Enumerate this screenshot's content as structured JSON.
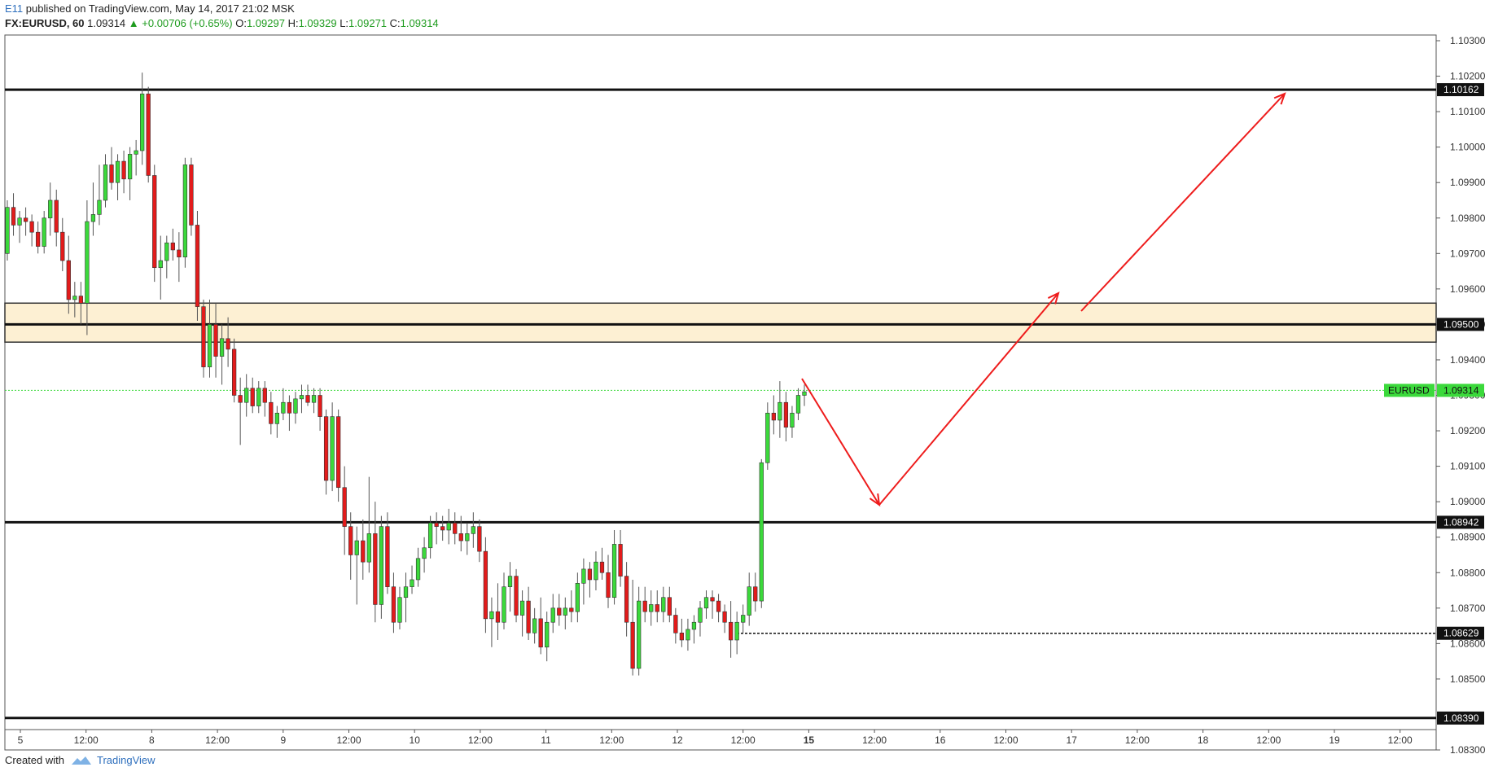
{
  "header": {
    "user": "E11",
    "published": " published on TradingView.com, May 14, 2017 21:02 MSK"
  },
  "symbol_bar": {
    "symbol": "FX:EURUSD, 60",
    "last": "1.09314",
    "change": "▲ +0.00706 (+0.65%)",
    "o_label": "O:",
    "o": "1.09297",
    "h_label": "H:",
    "h": "1.09329",
    "l_label": "L:",
    "l": "1.09271",
    "c_label": "C:",
    "c": "1.09314"
  },
  "footer": {
    "created": "Created with",
    "brand": "TradingView"
  },
  "chart_data": {
    "type": "candlestick",
    "symbol": "EURUSD",
    "ylim": [
      1.0827,
      1.1031
    ],
    "y_ticks": [
      "1.10300",
      "1.10200",
      "1.10100",
      "1.10000",
      "1.09900",
      "1.09800",
      "1.09700",
      "1.09600",
      "1.09500",
      "1.09400",
      "1.09300",
      "1.09200",
      "1.09100",
      "1.09000",
      "1.08900",
      "1.08800",
      "1.08700",
      "1.08600",
      "1.08500",
      "1.08300"
    ],
    "x_ticks": [
      "5",
      "12:00",
      "8",
      "12:00",
      "9",
      "12:00",
      "10",
      "12:00",
      "11",
      "12:00",
      "12",
      "12:00",
      "15",
      "12:00",
      "16",
      "12:00",
      "17",
      "12:00",
      "18",
      "12:00",
      "19",
      "12:00"
    ],
    "horizontal_levels": [
      {
        "label": "1.10162",
        "value": 1.10162,
        "style": "solid"
      },
      {
        "label": "1.09500",
        "value": 1.095,
        "style": "solid"
      },
      {
        "label": "1.08942",
        "value": 1.08942,
        "style": "solid"
      },
      {
        "label": "1.08629",
        "value": 1.08629,
        "style": "dotted"
      },
      {
        "label": "1.08390",
        "value": 1.0839,
        "style": "solid"
      }
    ],
    "zone": {
      "low": 1.0945,
      "high": 1.0956
    },
    "current_price": {
      "name": "EURUSD",
      "label": "1.09314",
      "value": 1.09314
    },
    "candle_colors": {
      "up": "#3bd93b",
      "down": "#e31b1b"
    },
    "candles": [
      [
        1.097,
        1.0985,
        1.0968,
        1.0983
      ],
      [
        1.0983,
        1.0987,
        1.0975,
        1.0978
      ],
      [
        1.0978,
        1.0982,
        1.0973,
        1.098
      ],
      [
        1.098,
        1.0983,
        1.0975,
        1.0979
      ],
      [
        1.0979,
        1.0981,
        1.0972,
        1.0976
      ],
      [
        1.0976,
        1.0979,
        1.097,
        1.0972
      ],
      [
        1.0972,
        1.0982,
        1.097,
        1.098
      ],
      [
        1.098,
        1.099,
        1.0975,
        1.0985
      ],
      [
        1.0985,
        1.0988,
        1.0972,
        1.0976
      ],
      [
        1.0976,
        1.098,
        1.0965,
        1.0968
      ],
      [
        1.0968,
        1.0975,
        1.0953,
        1.0957
      ],
      [
        1.0957,
        1.0962,
        1.0952,
        1.0958
      ],
      [
        1.0958,
        1.0962,
        1.095,
        1.0956
      ],
      [
        1.0956,
        1.0985,
        1.0947,
        1.0979
      ],
      [
        1.0979,
        1.099,
        1.0975,
        1.0981
      ],
      [
        1.0981,
        1.0995,
        1.0978,
        1.0985
      ],
      [
        1.0985,
        1.0998,
        1.0983,
        1.0995
      ],
      [
        1.0995,
        1.1,
        1.0988,
        1.099
      ],
      [
        1.099,
        1.0998,
        1.0985,
        1.0996
      ],
      [
        1.0996,
        1.0999,
        1.0987,
        1.0991
      ],
      [
        1.0991,
        1.1,
        1.0985,
        1.0998
      ],
      [
        1.0998,
        1.1002,
        1.0992,
        1.0999
      ],
      [
        1.0999,
        1.1021,
        1.0995,
        1.1015
      ],
      [
        1.1015,
        1.1017,
        1.099,
        1.0992
      ],
      [
        1.0992,
        1.0995,
        1.0962,
        1.0966
      ],
      [
        1.0966,
        1.0975,
        1.0957,
        1.0968
      ],
      [
        1.0968,
        1.0975,
        1.0963,
        1.0973
      ],
      [
        1.0973,
        1.0977,
        1.0968,
        1.0971
      ],
      [
        1.0971,
        1.0976,
        1.0962,
        1.0969
      ],
      [
        1.0969,
        1.0997,
        1.0966,
        1.0995
      ],
      [
        1.0995,
        1.0997,
        1.0975,
        1.0978
      ],
      [
        1.0978,
        1.0982,
        1.0951,
        1.0955
      ],
      [
        1.0955,
        1.0957,
        1.0935,
        1.0938
      ],
      [
        1.0938,
        1.0957,
        1.0935,
        1.095
      ],
      [
        1.095,
        1.0956,
        1.0935,
        1.0941
      ],
      [
        1.0941,
        1.095,
        1.0933,
        1.0946
      ],
      [
        1.0946,
        1.0952,
        1.0938,
        1.0943
      ],
      [
        1.0943,
        1.0946,
        1.0928,
        1.093
      ],
      [
        1.093,
        1.0935,
        1.0916,
        1.0928
      ],
      [
        1.0928,
        1.0936,
        1.0924,
        1.0932
      ],
      [
        1.0932,
        1.0935,
        1.0925,
        1.0927
      ],
      [
        1.0927,
        1.0934,
        1.0925,
        1.0932
      ],
      [
        1.0932,
        1.0934,
        1.0924,
        1.0928
      ],
      [
        1.0928,
        1.0931,
        1.0919,
        1.0922
      ],
      [
        1.0922,
        1.0927,
        1.0918,
        1.0925
      ],
      [
        1.0925,
        1.0932,
        1.0923,
        1.0928
      ],
      [
        1.0928,
        1.093,
        1.092,
        1.0925
      ],
      [
        1.0925,
        1.0931,
        1.0922,
        1.0929
      ],
      [
        1.0929,
        1.0933,
        1.0925,
        1.093
      ],
      [
        1.093,
        1.0933,
        1.0927,
        1.0928
      ],
      [
        1.0928,
        1.0932,
        1.0925,
        1.093
      ],
      [
        1.093,
        1.0932,
        1.092,
        1.0924
      ],
      [
        1.0924,
        1.0926,
        1.0902,
        1.0906
      ],
      [
        1.0906,
        1.0928,
        1.0903,
        1.0924
      ],
      [
        1.0924,
        1.0926,
        1.09,
        1.0904
      ],
      [
        1.0904,
        1.091,
        1.0885,
        1.0893
      ],
      [
        1.0893,
        1.0897,
        1.0878,
        1.0885
      ],
      [
        1.0885,
        1.0893,
        1.0871,
        1.0889
      ],
      [
        1.0889,
        1.0895,
        1.0878,
        1.0883
      ],
      [
        1.0883,
        1.0907,
        1.088,
        1.0891
      ],
      [
        1.0891,
        1.09,
        1.0866,
        1.0871
      ],
      [
        1.0871,
        1.0896,
        1.0867,
        1.0893
      ],
      [
        1.0893,
        1.0897,
        1.0874,
        1.0876
      ],
      [
        1.0876,
        1.088,
        1.0863,
        1.0866
      ],
      [
        1.0866,
        1.0876,
        1.0864,
        1.0873
      ],
      [
        1.0873,
        1.088,
        1.0866,
        1.0876
      ],
      [
        1.0876,
        1.0882,
        1.0874,
        1.0878
      ],
      [
        1.0878,
        1.0887,
        1.0876,
        1.0884
      ],
      [
        1.0884,
        1.089,
        1.088,
        1.0887
      ],
      [
        1.0887,
        1.0896,
        1.0884,
        1.0894
      ],
      [
        1.0894,
        1.0897,
        1.0888,
        1.0893
      ],
      [
        1.0893,
        1.0896,
        1.0889,
        1.0892
      ],
      [
        1.0892,
        1.0898,
        1.0888,
        1.0894
      ],
      [
        1.0894,
        1.0897,
        1.0888,
        1.0891
      ],
      [
        1.0891,
        1.0896,
        1.0886,
        1.0889
      ],
      [
        1.0889,
        1.0894,
        1.0885,
        1.0891
      ],
      [
        1.0891,
        1.0897,
        1.0887,
        1.0893
      ],
      [
        1.0893,
        1.0895,
        1.0883,
        1.0886
      ],
      [
        1.0886,
        1.089,
        1.0863,
        1.0867
      ],
      [
        1.0867,
        1.0873,
        1.0859,
        1.0869
      ],
      [
        1.0869,
        1.0877,
        1.0861,
        1.0866
      ],
      [
        1.0866,
        1.088,
        1.0864,
        1.0876
      ],
      [
        1.0876,
        1.0883,
        1.0869,
        1.0879
      ],
      [
        1.0879,
        1.0881,
        1.0866,
        1.0868
      ],
      [
        1.0868,
        1.0875,
        1.0862,
        1.0872
      ],
      [
        1.0872,
        1.0876,
        1.0861,
        1.0863
      ],
      [
        1.0863,
        1.087,
        1.086,
        1.0867
      ],
      [
        1.0867,
        1.0873,
        1.0857,
        1.0859
      ],
      [
        1.0859,
        1.0869,
        1.0855,
        1.0866
      ],
      [
        1.0866,
        1.0874,
        1.0863,
        1.087
      ],
      [
        1.087,
        1.0874,
        1.0865,
        1.0868
      ],
      [
        1.0868,
        1.0873,
        1.0864,
        1.087
      ],
      [
        1.087,
        1.0875,
        1.0866,
        1.0869
      ],
      [
        1.0869,
        1.088,
        1.0866,
        1.0877
      ],
      [
        1.0877,
        1.0884,
        1.0871,
        1.0881
      ],
      [
        1.0881,
        1.0883,
        1.0873,
        1.0878
      ],
      [
        1.0878,
        1.0886,
        1.0875,
        1.0883
      ],
      [
        1.0883,
        1.0887,
        1.0878,
        1.088
      ],
      [
        1.088,
        1.0885,
        1.087,
        1.0873
      ],
      [
        1.0873,
        1.0892,
        1.0871,
        1.0888
      ],
      [
        1.0888,
        1.0892,
        1.0876,
        1.0879
      ],
      [
        1.0879,
        1.0883,
        1.0862,
        1.0866
      ],
      [
        1.0866,
        1.0878,
        1.0851,
        1.0853
      ],
      [
        1.0853,
        1.0876,
        1.0851,
        1.0872
      ],
      [
        1.0872,
        1.0876,
        1.0866,
        1.0869
      ],
      [
        1.0869,
        1.0875,
        1.0865,
        1.0871
      ],
      [
        1.0871,
        1.0875,
        1.0866,
        1.0869
      ],
      [
        1.0869,
        1.0876,
        1.0866,
        1.0873
      ],
      [
        1.0873,
        1.0876,
        1.0866,
        1.0868
      ],
      [
        1.0868,
        1.087,
        1.086,
        1.0863
      ],
      [
        1.0863,
        1.0867,
        1.0859,
        1.0861
      ],
      [
        1.0861,
        1.0867,
        1.0858,
        1.0864
      ],
      [
        1.0864,
        1.0868,
        1.086,
        1.0866
      ],
      [
        1.0866,
        1.0872,
        1.0862,
        1.087
      ],
      [
        1.087,
        1.0875,
        1.0867,
        1.0873
      ],
      [
        1.0873,
        1.0875,
        1.0867,
        1.0872
      ],
      [
        1.0872,
        1.0874,
        1.0866,
        1.0869
      ],
      [
        1.0869,
        1.0871,
        1.0863,
        1.0866
      ],
      [
        1.0866,
        1.0872,
        1.0856,
        1.0861
      ],
      [
        1.0861,
        1.0869,
        1.0857,
        1.0866
      ],
      [
        1.0866,
        1.0871,
        1.0863,
        1.0868
      ],
      [
        1.0868,
        1.088,
        1.0865,
        1.0876
      ],
      [
        1.0876,
        1.088,
        1.0869,
        1.0872
      ],
      [
        1.0872,
        1.0912,
        1.087,
        1.0911
      ],
      [
        1.0911,
        1.0928,
        1.0909,
        1.0925
      ],
      [
        1.0925,
        1.093,
        1.0919,
        1.0923
      ],
      [
        1.0923,
        1.0934,
        1.0918,
        1.0928
      ],
      [
        1.0928,
        1.0931,
        1.0917,
        1.0921
      ],
      [
        1.0921,
        1.0927,
        1.0918,
        1.0925
      ],
      [
        1.0925,
        1.0932,
        1.0923,
        1.093
      ],
      [
        1.093,
        1.0933,
        1.0927,
        1.0931
      ]
    ]
  },
  "projection_arrows": [
    {
      "name": "projection-arrow-down"
    },
    {
      "name": "projection-arrow-up-to-zone"
    },
    {
      "name": "projection-arrow-up-to-target"
    }
  ]
}
